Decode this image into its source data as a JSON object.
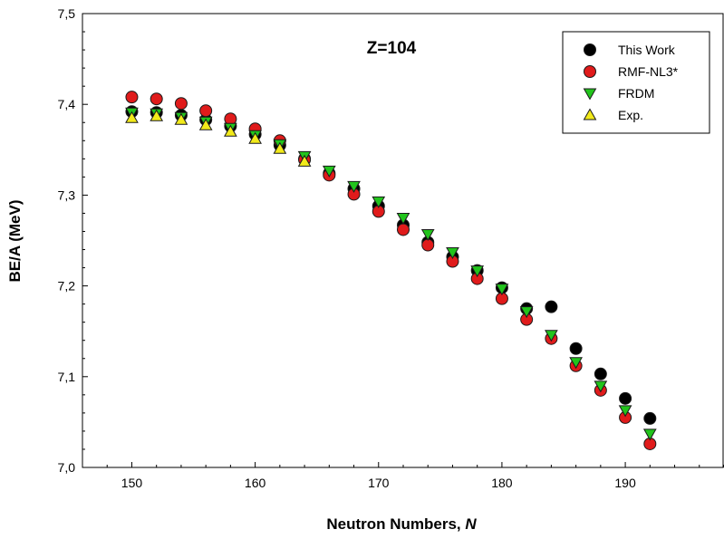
{
  "chart_data": {
    "type": "scatter",
    "title": "",
    "annotation": "Z=104",
    "xlabel": "Neutron Numbers, ",
    "xlabel_italic": "N",
    "ylabel": "BE/A (MeV)",
    "xlim": [
      146,
      198
    ],
    "ylim": [
      7.0,
      7.5
    ],
    "xticks": [
      150,
      160,
      170,
      180,
      190
    ],
    "xtick_labels": [
      "150",
      "160",
      "170",
      "180",
      "190"
    ],
    "yticks": [
      7.0,
      7.1,
      7.2,
      7.3,
      7.4,
      7.5
    ],
    "ytick_labels": [
      "7,0",
      "7,1",
      "7,2",
      "7,3",
      "7,4",
      "7,5"
    ],
    "legend_position": "top-right",
    "series": [
      {
        "name": "This Work",
        "marker": "circle",
        "color": "#000000",
        "x": [
          150,
          152,
          154,
          156,
          158,
          160,
          162,
          164,
          166,
          168,
          170,
          172,
          174,
          176,
          178,
          180,
          182,
          184,
          186,
          188,
          190,
          192
        ],
        "y": [
          7.392,
          7.391,
          7.388,
          7.383,
          7.376,
          7.367,
          7.355,
          7.34,
          7.324,
          7.307,
          7.288,
          7.267,
          7.248,
          7.232,
          7.217,
          7.198,
          7.175,
          7.177,
          7.131,
          7.103,
          7.076,
          7.054
        ]
      },
      {
        "name": "RMF-NL3*",
        "marker": "circle",
        "color": "#e01b1b",
        "x": [
          150,
          152,
          154,
          156,
          158,
          160,
          162,
          164,
          166,
          168,
          170,
          172,
          174,
          176,
          178,
          180,
          182,
          184,
          186,
          188,
          190,
          192
        ],
        "y": [
          7.408,
          7.406,
          7.401,
          7.393,
          7.384,
          7.373,
          7.36,
          7.339,
          7.322,
          7.301,
          7.282,
          7.262,
          7.245,
          7.227,
          7.208,
          7.186,
          7.163,
          7.142,
          7.112,
          7.085,
          7.055,
          7.026
        ]
      },
      {
        "name": "FRDM",
        "marker": "triangle-down",
        "color": "#22c41c",
        "x": [
          150,
          152,
          154,
          156,
          158,
          160,
          162,
          164,
          166,
          168,
          170,
          172,
          174,
          176,
          178,
          180,
          182,
          184,
          186,
          188,
          190,
          192
        ],
        "y": [
          7.391,
          7.39,
          7.386,
          7.381,
          7.374,
          7.366,
          7.356,
          7.343,
          7.327,
          7.31,
          7.293,
          7.275,
          7.257,
          7.237,
          7.217,
          7.197,
          7.172,
          7.146,
          7.116,
          7.09,
          7.063,
          7.037
        ]
      },
      {
        "name": "Exp.",
        "marker": "triangle-up",
        "color": "#f2ea1a",
        "x": [
          150,
          152,
          154,
          156,
          158,
          160,
          162,
          164
        ],
        "y": [
          7.385,
          7.387,
          7.383,
          7.377,
          7.37,
          7.362,
          7.351,
          7.337
        ]
      }
    ]
  }
}
